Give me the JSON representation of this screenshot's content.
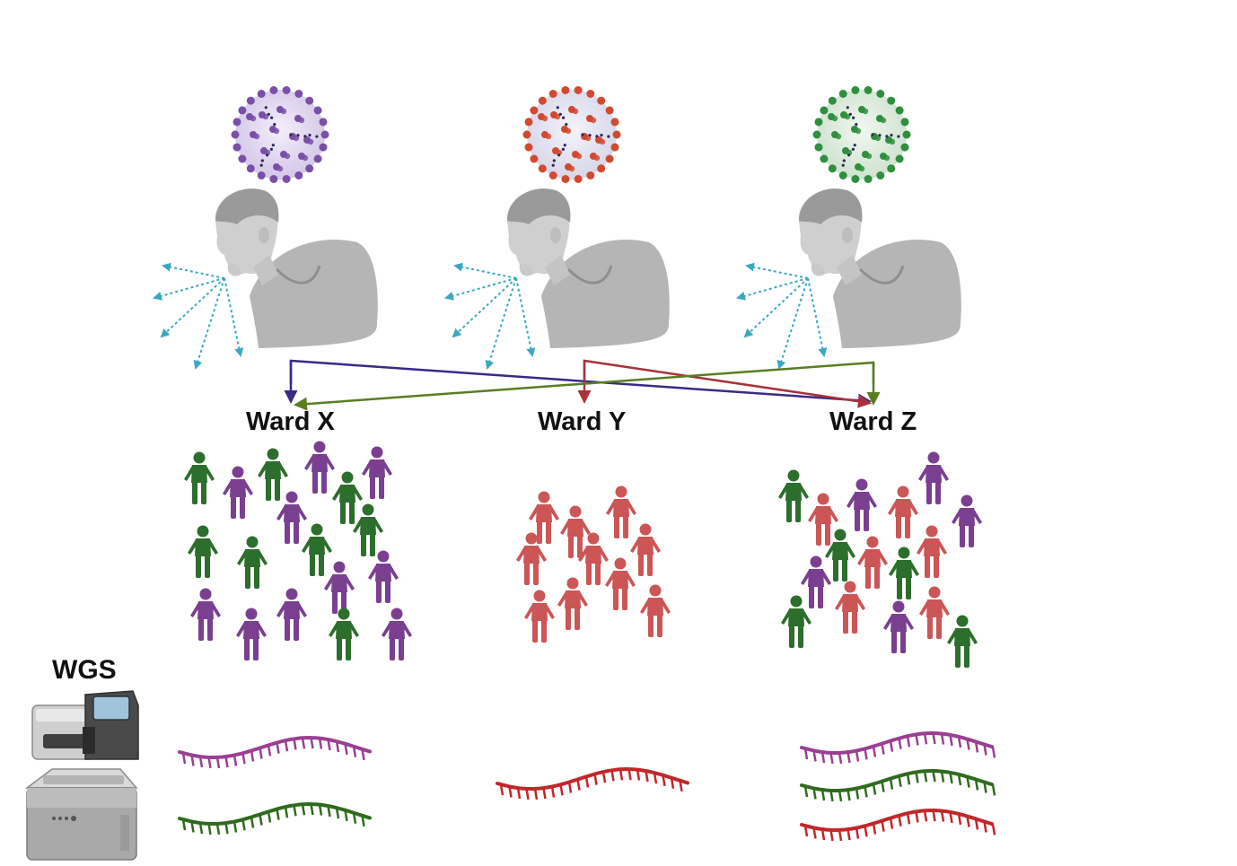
{
  "wards": [
    {
      "label": "Ward X",
      "people": {
        "purple": 10,
        "green": 9
      },
      "sequences": [
        "purple",
        "green"
      ]
    },
    {
      "label": "Ward Y",
      "people": {
        "red": 12
      },
      "sequences": [
        "red"
      ]
    },
    {
      "label": "Ward Z",
      "people": {
        "purple": 6,
        "red": 9,
        "green": 6
      },
      "sequences": [
        "purple",
        "green",
        "red"
      ]
    }
  ],
  "viruses": [
    {
      "name": "purple-virus",
      "color": "#7a4fa8"
    },
    {
      "name": "red-virus",
      "color": "#d14a30"
    },
    {
      "name": "green-virus",
      "color": "#2e8f3e"
    }
  ],
  "transmission_arrows": [
    {
      "from": "purple-virus-patient",
      "to": [
        "Ward X",
        "Ward Z"
      ],
      "color": "#3a2a86"
    },
    {
      "from": "red-virus-patient",
      "to": [
        "Ward Y",
        "Ward Z"
      ],
      "color": "#a8323a"
    },
    {
      "from": "green-virus-patient",
      "to": [
        "Ward X",
        "Ward Z"
      ],
      "color": "#5a7d22"
    }
  ],
  "colors": {
    "purple_person": "#7b3f91",
    "red_person": "#cc5555",
    "green_person": "#2c6e2c",
    "purple_seq": "#9a3f93",
    "green_seq": "#2f6b1e",
    "red_seq": "#c3262a",
    "breath": "#3aa8c1"
  },
  "sequencer": {
    "label": "WGS"
  }
}
